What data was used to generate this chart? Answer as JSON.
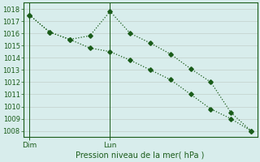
{
  "title": "Pression niveau de la mer( hPa )",
  "background_color": "#d8edec",
  "grid_color": "#c8d8d4",
  "line_color": "#1a5c1a",
  "spine_color": "#1a5c1a",
  "ylim": [
    1007.5,
    1018.5
  ],
  "yticks": [
    1008,
    1009,
    1010,
    1011,
    1012,
    1013,
    1014,
    1015,
    1016,
    1017,
    1018
  ],
  "xlim": [
    -0.3,
    11.3
  ],
  "dim_x": 0,
  "lun_x": 4,
  "series1_x": [
    0,
    1,
    2,
    3,
    4,
    5,
    6,
    7,
    8,
    9,
    10,
    11
  ],
  "series1_y": [
    1017.5,
    1016.1,
    1015.5,
    1015.8,
    1017.8,
    1016.0,
    1015.2,
    1014.3,
    1013.1,
    1012.0,
    1009.5,
    1008.0
  ],
  "series2_x": [
    0,
    1,
    2,
    3,
    4,
    5,
    6,
    7,
    8,
    9,
    10,
    11
  ],
  "series2_y": [
    1017.5,
    1016.1,
    1015.5,
    1014.8,
    1014.5,
    1013.8,
    1013.0,
    1012.2,
    1011.0,
    1009.8,
    1009.0,
    1008.0
  ],
  "xlabel_dim": "Dim",
  "xlabel_lun": "Lun",
  "title_fontsize": 7.0,
  "tick_labelsize": 6.0,
  "xtick_labelsize": 6.5,
  "marker_size": 2.8,
  "linewidth": 0.9
}
